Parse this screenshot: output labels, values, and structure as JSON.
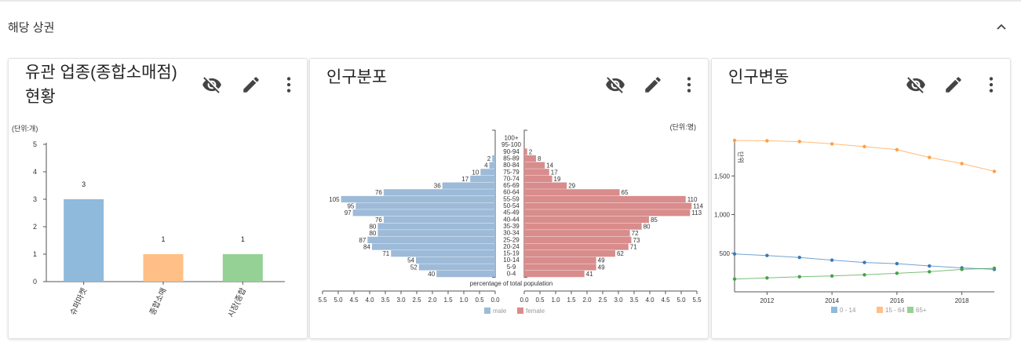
{
  "section": {
    "title": "해당 상권"
  },
  "cards": [
    {
      "title": "유관 업종(종합소매점) 현황",
      "title_line1": "유관 업종(종합소매점)",
      "title_line2": "현황"
    },
    {
      "title": "인구분포"
    },
    {
      "title": "인구변동"
    }
  ],
  "icons": {
    "visibility": "eye-off-icon",
    "edit": "pencil-icon",
    "more": "more-vertical-icon",
    "collapse": "chevron-up-icon"
  },
  "chart_data": [
    {
      "type": "bar",
      "unit_label": "(단위:개)",
      "categories": [
        "슈퍼마켓",
        "종합소매",
        "시장(종합"
      ],
      "values": [
        3,
        1,
        1
      ],
      "colors": [
        "#8fbadb",
        "#ffbf86",
        "#95d194"
      ],
      "ylim": [
        0,
        5
      ],
      "yticks": [
        0,
        1,
        2,
        3,
        4,
        5
      ]
    },
    {
      "type": "bar",
      "subtype": "population-pyramid",
      "unit_label": "(단위:명)",
      "age_groups": [
        "100+",
        "95-100",
        "90-94",
        "85-89",
        "80-84",
        "75-79",
        "70-74",
        "65-69",
        "60-64",
        "55-59",
        "50-54",
        "45-49",
        "40-44",
        "35-39",
        "30-34",
        "25-29",
        "20-24",
        "15-19",
        "10-14",
        "5-9",
        "0-4"
      ],
      "series": [
        {
          "name": "male",
          "color": "#9dbbd8",
          "values": [
            0,
            0,
            0,
            2,
            4,
            10,
            17,
            36,
            76,
            105,
            95,
            97,
            76,
            80,
            80,
            87,
            84,
            71,
            54,
            52,
            40
          ]
        },
        {
          "name": "female",
          "color": "#d98c8c",
          "values": [
            0,
            0,
            2,
            8,
            14,
            17,
            19,
            29,
            65,
            110,
            114,
            113,
            85,
            80,
            72,
            73,
            71,
            62,
            49,
            49,
            41
          ]
        }
      ],
      "xlabel": "percentage of total population",
      "xlim": [
        0,
        5.5
      ],
      "xticks": [
        "5.5",
        "5.0",
        "4.5",
        "4.0",
        "3.5",
        "3.0",
        "2.5",
        "2.0",
        "1.5",
        "1.0",
        "0.5",
        "0.0",
        "0.0",
        "0.5",
        "1.0",
        "1.5",
        "2.0",
        "2.5",
        "3.0",
        "3.5",
        "4.0",
        "4.5",
        "5.0",
        "5.5"
      ],
      "legend_position": "bottom"
    },
    {
      "type": "line",
      "unit_label": "단위",
      "x": [
        2011,
        2012,
        2013,
        2014,
        2015,
        2016,
        2017,
        2018,
        2019
      ],
      "xticks": [
        "2012",
        "2014",
        "2016",
        "2018"
      ],
      "yticks": [
        "500",
        "1,000",
        "1,500"
      ],
      "ylim": [
        0,
        1960
      ],
      "series": [
        {
          "name": "0 - 14",
          "color": "#3a7ab8",
          "legend_color": "#8fbadb",
          "values": [
            490,
            470,
            445,
            410,
            380,
            365,
            335,
            310,
            290
          ]
        },
        {
          "name": "15 - 64",
          "color": "#ff9f40",
          "legend_color": "#ffbf86",
          "values": [
            1960,
            1955,
            1945,
            1915,
            1880,
            1840,
            1740,
            1660,
            1560
          ]
        },
        {
          "name": "65+",
          "color": "#46a346",
          "legend_color": "#95d194",
          "values": [
            165,
            180,
            195,
            205,
            220,
            240,
            260,
            290,
            305
          ]
        }
      ],
      "legend_position": "bottom"
    }
  ]
}
